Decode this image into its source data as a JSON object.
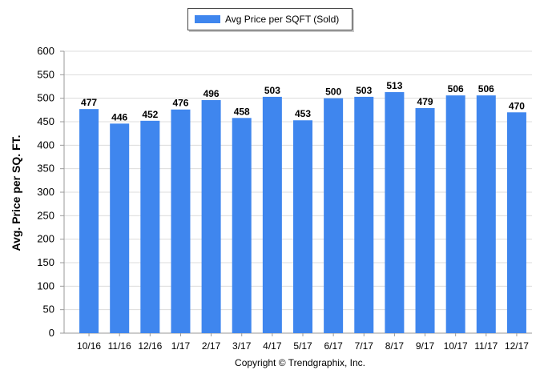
{
  "chart_data": {
    "type": "bar",
    "categories": [
      "10/16",
      "11/16",
      "12/16",
      "1/17",
      "2/17",
      "3/17",
      "4/17",
      "5/17",
      "6/17",
      "7/17",
      "8/17",
      "9/17",
      "10/17",
      "11/17",
      "12/17"
    ],
    "series": [
      {
        "name": "Avg Price per SQFT (Sold)",
        "values": [
          477,
          446,
          452,
          476,
          496,
          458,
          503,
          453,
          500,
          503,
          513,
          479,
          506,
          506,
          470
        ],
        "color": "#3f86ee"
      }
    ],
    "xlabel": "",
    "ylabel": "Avg. Price per SQ. FT.",
    "ylim": [
      0,
      600
    ],
    "yticks": [
      0,
      50,
      100,
      150,
      200,
      250,
      300,
      350,
      400,
      450,
      500,
      550,
      600
    ],
    "grid": true,
    "legend_position": "top-center",
    "data_labels": true
  },
  "footer": {
    "copyright": "Copyright © Trendgraphix, Inc."
  },
  "colors": {
    "bar": "#3f86ee",
    "grid": "#dcdcdc",
    "axis": "#999999"
  }
}
